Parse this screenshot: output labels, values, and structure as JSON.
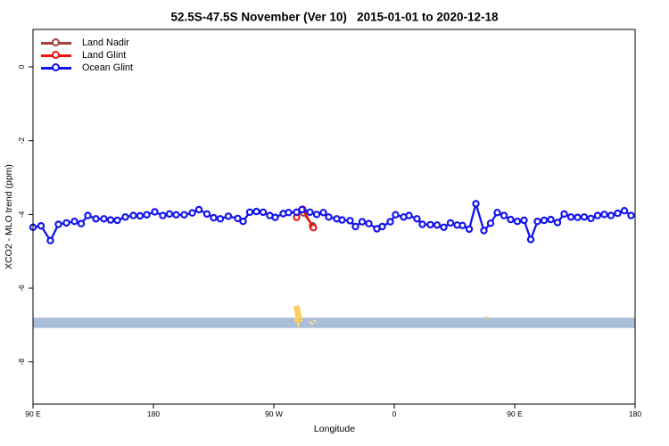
{
  "chart_data": {
    "type": "line",
    "title": "52.5S-47.5S November (Ver 10)   2015-01-01 to 2020-12-18",
    "xlabel": "Longitude",
    "ylabel": "XCO2 - MLO trend (ppm)",
    "grid": false,
    "legend_position": "top-left",
    "x_axis_wrap_note": "axis spans 450 deg of longitude starting at 90E, wrapping through 180, 90W, 0, 90E to 180",
    "x_range": [
      90,
      540
    ],
    "ylim": [
      -9.1,
      1.0
    ],
    "x_ticks": [
      {
        "pos": 90,
        "label": "90 E"
      },
      {
        "pos": 180,
        "label": "180"
      },
      {
        "pos": 270,
        "label": "90 W"
      },
      {
        "pos": 360,
        "label": "0"
      },
      {
        "pos": 450,
        "label": "90 E"
      },
      {
        "pos": 540,
        "label": "180"
      }
    ],
    "y_ticks": [
      {
        "pos": 0,
        "label": "0"
      },
      {
        "pos": -2,
        "label": "-2"
      },
      {
        "pos": -4,
        "label": "-4"
      },
      {
        "pos": -6,
        "label": "-6"
      },
      {
        "pos": -8,
        "label": "-8"
      }
    ],
    "series": [
      {
        "name": "Land Nadir",
        "color": "#9E423A",
        "marker": "open-circle",
        "points": [
          [
            292,
            -3.96
          ],
          [
            299,
            -4.31
          ]
        ]
      },
      {
        "name": "Land Glint",
        "color": "#EE1111",
        "marker": "open-circle",
        "points": [
          [
            287,
            -4.08
          ],
          [
            291.5,
            -3.86
          ],
          [
            299.5,
            -4.36
          ]
        ]
      },
      {
        "name": "Ocean Glint",
        "color": "#1313EE",
        "marker": "open-circle",
        "points": [
          [
            90,
            -4.35
          ],
          [
            96,
            -4.31
          ],
          [
            103,
            -4.71
          ],
          [
            109,
            -4.27
          ],
          [
            115,
            -4.23
          ],
          [
            121,
            -4.19
          ],
          [
            126,
            -4.25
          ],
          [
            131,
            -4.03
          ],
          [
            137,
            -4.12
          ],
          [
            143,
            -4.12
          ],
          [
            148,
            -4.15
          ],
          [
            153,
            -4.16
          ],
          [
            159,
            -4.07
          ],
          [
            165,
            -4.03
          ],
          [
            170,
            -4.04
          ],
          [
            175,
            -4.01
          ],
          [
            181,
            -3.93
          ],
          [
            187,
            -4.03
          ],
          [
            192,
            -3.99
          ],
          [
            197,
            -4.01
          ],
          [
            203,
            -4.01
          ],
          [
            209,
            -3.96
          ],
          [
            214,
            -3.87
          ],
          [
            220,
            -3.99
          ],
          [
            225,
            -4.09
          ],
          [
            230,
            -4.12
          ],
          [
            236,
            -4.05
          ],
          [
            243,
            -4.11
          ],
          [
            247,
            -4.19
          ],
          [
            252,
            -3.94
          ],
          [
            257,
            -3.92
          ],
          [
            262,
            -3.94
          ],
          [
            267,
            -4.03
          ],
          [
            271,
            -4.08
          ],
          [
            277,
            -3.98
          ],
          [
            281,
            -3.95
          ],
          [
            287,
            -3.94
          ],
          [
            291,
            -3.87
          ],
          [
            297,
            -3.94
          ],
          [
            302,
            -4.0
          ],
          [
            307,
            -3.95
          ],
          [
            311,
            -4.07
          ],
          [
            317,
            -4.12
          ],
          [
            321,
            -4.15
          ],
          [
            327,
            -4.17
          ],
          [
            331,
            -4.33
          ],
          [
            336,
            -4.2
          ],
          [
            341,
            -4.25
          ],
          [
            347,
            -4.39
          ],
          [
            351,
            -4.33
          ],
          [
            357,
            -4.2
          ],
          [
            361,
            -4.01
          ],
          [
            367,
            -4.07
          ],
          [
            371,
            -4.03
          ],
          [
            377,
            -4.12
          ],
          [
            381,
            -4.27
          ],
          [
            387,
            -4.28
          ],
          [
            392,
            -4.29
          ],
          [
            397,
            -4.35
          ],
          [
            402,
            -4.23
          ],
          [
            407,
            -4.29
          ],
          [
            411,
            -4.3
          ],
          [
            416,
            -4.4
          ],
          [
            421,
            -3.71
          ],
          [
            427,
            -4.44
          ],
          [
            432,
            -4.24
          ],
          [
            437,
            -3.95
          ],
          [
            442,
            -4.03
          ],
          [
            447,
            -4.14
          ],
          [
            452,
            -4.19
          ],
          [
            457,
            -4.16
          ],
          [
            462,
            -4.68
          ],
          [
            467,
            -4.19
          ],
          [
            472,
            -4.16
          ],
          [
            477,
            -4.14
          ],
          [
            482,
            -4.22
          ],
          [
            487,
            -3.99
          ],
          [
            492,
            -4.07
          ],
          [
            497,
            -4.08
          ],
          [
            502,
            -4.07
          ],
          [
            507,
            -4.11
          ],
          [
            512,
            -4.03
          ],
          [
            517,
            -4.0
          ],
          [
            522,
            -4.03
          ],
          [
            527,
            -3.97
          ],
          [
            532,
            -3.9
          ],
          [
            537,
            -4.03
          ]
        ]
      }
    ],
    "band": {
      "v_top": -6.8,
      "v_bottom": -7.08,
      "color": "#A9BED9",
      "x_full_width": true
    },
    "marks": {
      "color": "#FBCD5C",
      "light_color": "#FFE08C",
      "segments": [
        [
          286.0,
          -6.52,
          288.5,
          -7.02
        ],
        [
          288.0,
          -6.5,
          290.5,
          -6.88
        ],
        [
          286.3,
          -6.88,
          288.8,
          -6.58
        ],
        [
          297.0,
          -6.93,
          299.0,
          -6.97
        ],
        [
          300.0,
          -6.88,
          301.0,
          -6.9
        ]
      ],
      "dot": [
        429,
        -6.8
      ]
    }
  }
}
